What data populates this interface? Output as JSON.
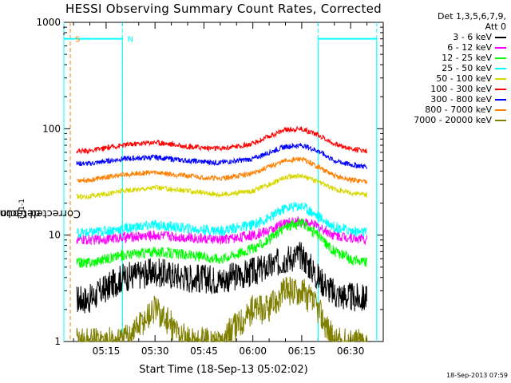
{
  "chart_data": {
    "type": "line",
    "title": "HESSI Observing Summary Count Rates, Corrected",
    "xlabel": "Start Time (18-Sep-13 05:02:02)",
    "ylabel_base": "Corrected Count Rate (s",
    "ylabel_sup": "-1",
    "ylabel_mid": " detector",
    "ylabel_sup2": "-1",
    "ylabel_end": ")",
    "y_scale": "log",
    "ylim": [
      1,
      1000
    ],
    "xlim": [
      "05:02:02",
      "06:40:00"
    ],
    "x_ticks": [
      "05:15",
      "05:30",
      "05:45",
      "06:00",
      "06:15",
      "06:30"
    ],
    "y_ticks": [
      "1",
      "10",
      "100",
      "1000"
    ],
    "grid": false,
    "legend_position": "right",
    "legend_header": [
      "Det 1,3,5,6,7,9,",
      "Att 0"
    ],
    "series": [
      {
        "name": "3 - 6 keV",
        "color": "#000000",
        "x": [
          "05:06",
          "05:10",
          "05:20",
          "05:30",
          "05:40",
          "05:50",
          "06:00",
          "06:05",
          "06:10",
          "06:15",
          "06:20",
          "06:25",
          "06:30",
          "06:35"
        ],
        "y": [
          2.5,
          2.5,
          4.0,
          4.5,
          4.0,
          3.8,
          4.5,
          5.0,
          6.0,
          6.5,
          4.0,
          2.8,
          2.6,
          2.5
        ]
      },
      {
        "name": "6 - 12 keV",
        "color": "#ff00ff",
        "x": [
          "05:06",
          "05:10",
          "05:20",
          "05:30",
          "05:40",
          "05:50",
          "06:00",
          "06:05",
          "06:10",
          "06:15",
          "06:20",
          "06:25",
          "06:30",
          "06:35"
        ],
        "y": [
          9.0,
          9.0,
          9.5,
          10.0,
          9.5,
          9.0,
          10.0,
          11.0,
          13.0,
          13.5,
          12.0,
          10.0,
          9.5,
          9.0
        ]
      },
      {
        "name": "12 - 25 keV",
        "color": "#00ff00",
        "x": [
          "05:06",
          "05:10",
          "05:20",
          "05:30",
          "05:40",
          "05:50",
          "06:00",
          "06:05",
          "06:10",
          "06:15",
          "06:20",
          "06:25",
          "06:30",
          "06:35"
        ],
        "y": [
          5.5,
          5.5,
          6.5,
          7.0,
          6.5,
          6.0,
          7.5,
          9.0,
          12.0,
          13.0,
          10.0,
          7.0,
          6.0,
          5.5
        ]
      },
      {
        "name": "25 - 50 keV",
        "color": "#00ffff",
        "x": [
          "05:06",
          "05:10",
          "05:20",
          "05:30",
          "05:40",
          "05:50",
          "06:00",
          "06:05",
          "06:10",
          "06:15",
          "06:20",
          "06:25",
          "06:30",
          "06:35"
        ],
        "y": [
          10.5,
          10.5,
          11.5,
          12.5,
          11.5,
          11.0,
          12.5,
          14.5,
          18.0,
          19.0,
          15.0,
          12.0,
          11.0,
          10.5
        ]
      },
      {
        "name": "50 - 100 keV",
        "color": "#d7d700",
        "x": [
          "05:06",
          "05:10",
          "05:20",
          "05:30",
          "05:40",
          "05:50",
          "06:00",
          "06:05",
          "06:10",
          "06:15",
          "06:20",
          "06:25",
          "06:30",
          "06:35"
        ],
        "y": [
          23,
          23,
          26,
          28,
          26,
          24,
          26,
          30,
          35,
          36,
          32,
          27,
          25,
          24
        ]
      },
      {
        "name": "100 - 300 keV",
        "color": "#ff0000",
        "x": [
          "05:06",
          "05:10",
          "05:20",
          "05:30",
          "05:40",
          "05:50",
          "06:00",
          "06:05",
          "06:10",
          "06:15",
          "06:20",
          "06:25",
          "06:30",
          "06:35"
        ],
        "y": [
          62,
          62,
          70,
          75,
          68,
          65,
          72,
          85,
          98,
          100,
          88,
          72,
          65,
          62
        ]
      },
      {
        "name": "300 - 800 keV",
        "color": "#0000ff",
        "x": [
          "05:06",
          "05:10",
          "05:20",
          "05:30",
          "05:40",
          "05:50",
          "06:00",
          "06:05",
          "06:10",
          "06:15",
          "06:20",
          "06:25",
          "06:30",
          "06:35"
        ],
        "y": [
          47,
          47,
          52,
          54,
          50,
          48,
          52,
          60,
          68,
          70,
          62,
          50,
          46,
          44
        ]
      },
      {
        "name": "800 - 7000 keV",
        "color": "#ff7f00",
        "x": [
          "05:06",
          "05:10",
          "05:20",
          "05:30",
          "05:40",
          "05:50",
          "06:00",
          "06:05",
          "06:10",
          "06:15",
          "06:20",
          "06:25",
          "06:30",
          "06:35"
        ],
        "y": [
          33,
          33,
          37,
          39,
          36,
          34,
          38,
          44,
          50,
          52,
          44,
          36,
          33,
          32
        ]
      },
      {
        "name": "7000 - 20000 keV",
        "color": "#7f7f00",
        "x": [
          "05:06",
          "05:10",
          "05:20",
          "05:30",
          "05:40",
          "05:50",
          "06:00",
          "06:05",
          "06:10",
          "06:15",
          "06:20",
          "06:25",
          "06:30",
          "06:35"
        ],
        "y": [
          1.0,
          1.0,
          1.0,
          2.0,
          1.0,
          1.0,
          2.0,
          2.0,
          3.0,
          3.0,
          2.0,
          1.0,
          1.0,
          1.0
        ]
      }
    ],
    "flags": [
      {
        "label": "S",
        "color": "#ff7f00",
        "x": "05:04",
        "level": 700
      },
      {
        "label": "N",
        "color": "#00ffff",
        "x": "05:20",
        "level": 700
      }
    ],
    "boundaries": [
      {
        "color": "#00ffff",
        "x": "05:02:02"
      },
      {
        "color": "#ff7f00",
        "x": "05:04"
      },
      {
        "color": "#00ffff",
        "x": "05:20"
      },
      {
        "color": "#00ffff",
        "x": "06:20"
      },
      {
        "color": "#00ffff",
        "x": "06:38"
      }
    ],
    "night_segments": [
      [
        "05:02:02",
        "05:20"
      ],
      [
        "06:20",
        "06:38"
      ]
    ]
  },
  "timestamp": "18-Sep-2013 07:59"
}
